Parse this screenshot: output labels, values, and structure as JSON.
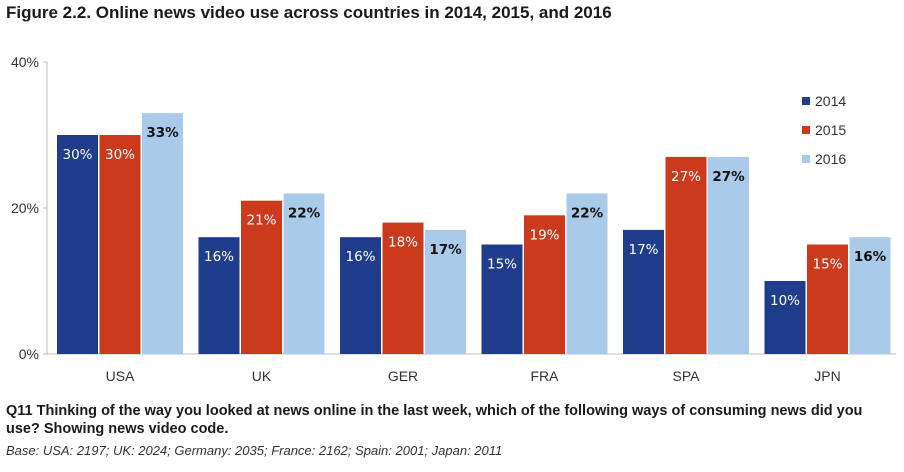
{
  "title": "Figure 2.2. Online news video use across countries in 2014, 2015, and 2016",
  "question": "Q11 Thinking of the way you looked at news online in the last week, which of the following ways of consuming news did you use? Showing news video code.",
  "base_note": "Base: USA: 2197; UK: 2024; Germany: 2035; France: 2162; Spain: 2001; Japan: 2011",
  "chart_data": {
    "type": "bar",
    "categories": [
      "USA",
      "UK",
      "GER",
      "FRA",
      "SPA",
      "JPN"
    ],
    "series": [
      {
        "name": "2014",
        "color": "#1f3d8c",
        "values": [
          30,
          16,
          16,
          15,
          17,
          10
        ],
        "labels": [
          "30%",
          "16%",
          "16%",
          "15%",
          "17%",
          "10%"
        ]
      },
      {
        "name": "2015",
        "color": "#cc3a1e",
        "values": [
          30,
          21,
          18,
          19,
          27,
          15
        ],
        "labels": [
          "30%",
          "21%",
          "18%",
          "19%",
          "27%",
          "15%"
        ]
      },
      {
        "name": "2016",
        "color": "#a9cbe9",
        "values": [
          33,
          22,
          17,
          22,
          27,
          16
        ],
        "labels": [
          "33%",
          "22%",
          "17%",
          "22%",
          "27%",
          "16%"
        ]
      }
    ],
    "ylim": [
      0,
      40
    ],
    "yticks": [
      0,
      20,
      40
    ],
    "ytick_labels": [
      "0%",
      "20%",
      "40%"
    ],
    "legend_position": "top-right",
    "grid": false
  }
}
